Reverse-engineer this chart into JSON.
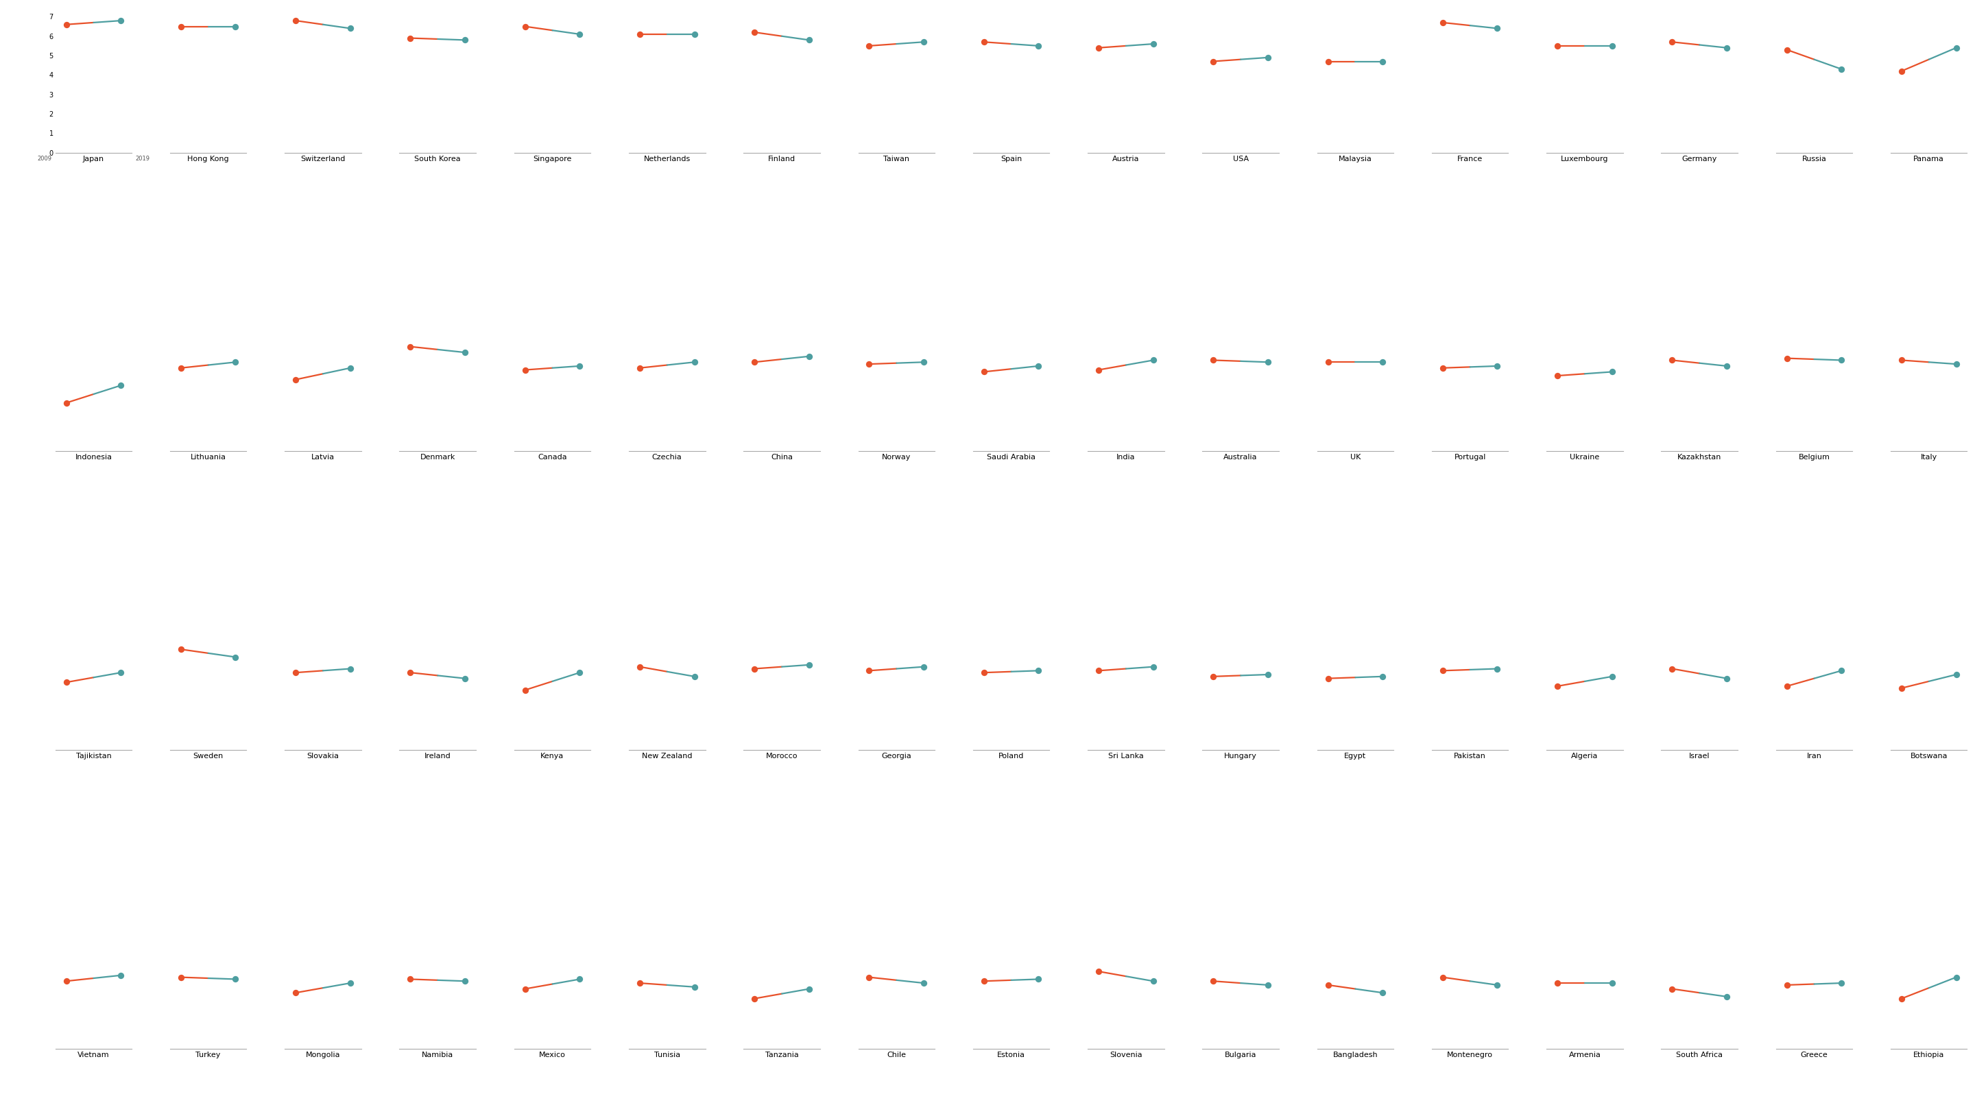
{
  "countries": [
    "Japan",
    "Hong Kong",
    "Switzerland",
    "South Korea",
    "Singapore",
    "Netherlands",
    "Finland",
    "Taiwan",
    "Spain",
    "Austria",
    "USA",
    "Malaysia",
    "France",
    "Luxembourg",
    "Germany",
    "Russia",
    "Panama",
    "Indonesia",
    "Lithuania",
    "Latvia",
    "Denmark",
    "Canada",
    "Czechia",
    "China",
    "Norway",
    "Saudi Arabia",
    "India",
    "Australia",
    "UK",
    "Portugal",
    "Ukraine",
    "Kazakhstan",
    "Belgium",
    "Italy",
    "Tajikistan",
    "Sweden",
    "Slovakia",
    "Ireland",
    "Kenya",
    "New Zealand",
    "Morocco",
    "Georgia",
    "Poland",
    "Sri Lanka",
    "Hungary",
    "Egypt",
    "Pakistan",
    "Algeria",
    "Israel",
    "Iran",
    "Botswana",
    "Vietnam",
    "Turkey",
    "Mongolia",
    "Namibia",
    "Mexico",
    "Tunisia",
    "Tanzania",
    "Chile",
    "Estonia",
    "Slovenia",
    "Bulgaria",
    "Bangladesh",
    "Montenegro",
    "Armenia",
    "South Africa",
    "Greece",
    "Ethiopia"
  ],
  "val_2009": [
    6.6,
    6.5,
    6.8,
    5.9,
    6.5,
    6.1,
    6.2,
    5.5,
    5.7,
    5.4,
    4.7,
    4.7,
    6.7,
    5.5,
    5.7,
    5.3,
    4.2,
    2.5,
    4.3,
    3.7,
    5.4,
    4.2,
    4.3,
    4.6,
    4.5,
    4.1,
    4.2,
    4.7,
    4.6,
    4.3,
    3.9,
    4.7,
    4.8,
    4.7,
    3.5,
    5.2,
    4.0,
    4.0,
    3.1,
    4.3,
    4.2,
    4.1,
    4.0,
    4.1,
    3.8,
    3.7,
    4.1,
    3.3,
    4.2,
    3.3,
    3.2,
    3.5,
    3.7,
    2.9,
    3.6,
    3.1,
    3.4,
    2.6,
    3.7,
    3.5,
    4.0,
    3.5,
    3.3,
    3.7,
    3.4,
    3.1,
    3.3,
    2.6
  ],
  "val_2019": [
    6.8,
    6.5,
    6.4,
    5.8,
    6.1,
    6.1,
    5.8,
    5.7,
    5.5,
    5.6,
    4.9,
    4.7,
    6.4,
    5.5,
    5.4,
    4.3,
    5.4,
    3.4,
    4.6,
    4.3,
    5.1,
    4.4,
    4.6,
    4.9,
    4.6,
    4.4,
    4.7,
    4.6,
    4.6,
    4.4,
    4.1,
    4.4,
    4.7,
    4.5,
    4.0,
    4.8,
    4.2,
    3.7,
    4.0,
    3.8,
    4.4,
    4.3,
    4.1,
    4.3,
    3.9,
    3.8,
    4.2,
    3.8,
    3.7,
    4.1,
    3.9,
    3.8,
    3.6,
    3.4,
    3.5,
    3.6,
    3.2,
    3.1,
    3.4,
    3.6,
    3.5,
    3.3,
    2.9,
    3.3,
    3.4,
    2.7,
    3.4,
    3.7
  ],
  "color_2009": "#E8512A",
  "color_2019": "#4D9EA0",
  "ncols": 17,
  "nrows": 4,
  "ylim": [
    0,
    7
  ],
  "yticks": [
    0,
    1,
    2,
    3,
    4,
    5,
    6,
    7
  ],
  "background_color": "#ffffff",
  "label_fontsize": 8.0,
  "tick_fontsize": 7.0,
  "dot_size": 45,
  "line_width": 1.6
}
